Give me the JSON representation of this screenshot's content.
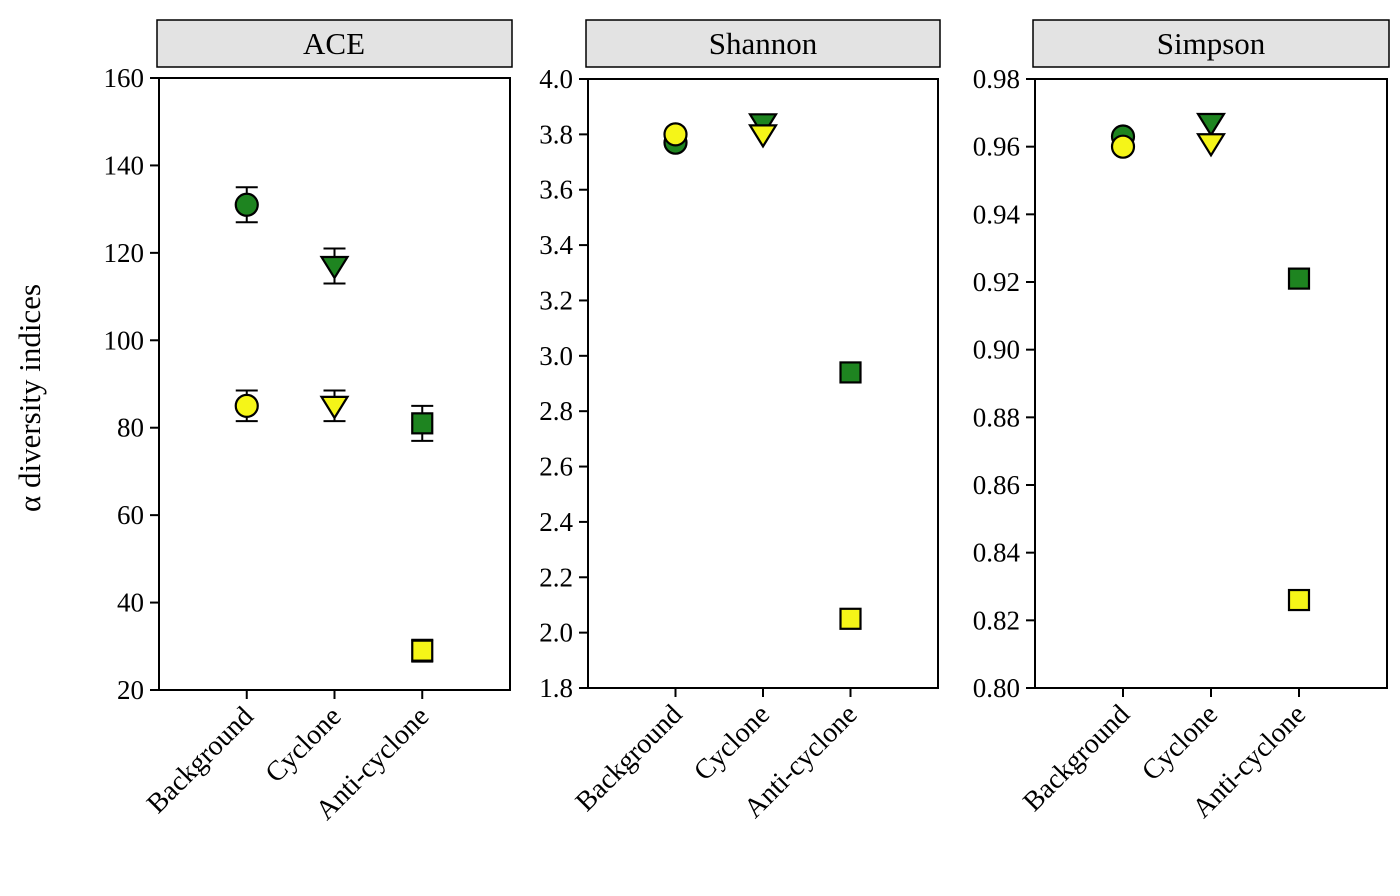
{
  "figure": {
    "ylabel": "α diversity indices",
    "colors": {
      "green": "#1e8420",
      "yellow": "#f5f518",
      "marker_outline": "#000000",
      "axis": "#000000",
      "header_bg": "#e3e3e3"
    }
  },
  "chart_data": [
    {
      "type": "scatter",
      "title": "ACE",
      "xlabel": "",
      "ylabel": "α diversity indices",
      "categories": [
        "Background",
        "Cyclone",
        "Anti-cyclone"
      ],
      "marker_by_category": [
        "circle",
        "triangle-down",
        "square"
      ],
      "ylim": [
        20,
        160
      ],
      "yticks": [
        160,
        140,
        120,
        100,
        80,
        60,
        40,
        20
      ],
      "ytick_labels": [
        "160",
        "140",
        "120",
        "100",
        "80",
        "60",
        "40",
        "20"
      ],
      "grid": false,
      "legend": "none",
      "series": [
        {
          "name": "green",
          "color_key": "green",
          "values": [
            131,
            117,
            81
          ],
          "errors": [
            4,
            4,
            4
          ]
        },
        {
          "name": "yellow",
          "color_key": "yellow",
          "values": [
            85,
            85,
            29
          ],
          "errors": [
            3.5,
            3.5,
            2.5
          ]
        }
      ]
    },
    {
      "type": "scatter",
      "title": "Shannon",
      "xlabel": "",
      "ylabel": "α diversity indices",
      "categories": [
        "Background",
        "Cyclone",
        "Anti-cyclone"
      ],
      "marker_by_category": [
        "circle",
        "triangle-down",
        "square"
      ],
      "ylim": [
        1.8,
        4.0
      ],
      "yticks": [
        4.0,
        3.8,
        3.6,
        3.4,
        3.2,
        3.0,
        2.8,
        2.6,
        2.4,
        2.2,
        2.0,
        1.8
      ],
      "ytick_labels": [
        "4.0",
        "3.8",
        "3.6",
        "3.4",
        "3.2",
        "3.0",
        "2.8",
        "2.6",
        "2.4",
        "2.2",
        "2.0",
        "1.8"
      ],
      "grid": false,
      "legend": "none",
      "series": [
        {
          "name": "green",
          "color_key": "green",
          "values": [
            3.77,
            3.84,
            2.94
          ],
          "errors": [
            0,
            0,
            0
          ]
        },
        {
          "name": "yellow",
          "color_key": "yellow",
          "values": [
            3.8,
            3.8,
            2.05
          ],
          "errors": [
            0,
            0,
            0
          ]
        }
      ]
    },
    {
      "type": "scatter",
      "title": "Simpson",
      "xlabel": "",
      "ylabel": "α diversity indices",
      "categories": [
        "Background",
        "Cyclone",
        "Anti-cyclone"
      ],
      "marker_by_category": [
        "circle",
        "triangle-down",
        "square"
      ],
      "ylim": [
        0.8,
        0.98
      ],
      "yticks": [
        0.98,
        0.96,
        0.94,
        0.92,
        0.9,
        0.88,
        0.86,
        0.84,
        0.82,
        0.8
      ],
      "ytick_labels": [
        "0.98",
        "0.96",
        "0.94",
        "0.92",
        "0.90",
        "0.88",
        "0.86",
        "0.84",
        "0.82",
        "0.80"
      ],
      "grid": false,
      "legend": "none",
      "series": [
        {
          "name": "green",
          "color_key": "green",
          "values": [
            0.963,
            0.967,
            0.921
          ],
          "errors": [
            0,
            0,
            0
          ]
        },
        {
          "name": "yellow",
          "color_key": "yellow",
          "values": [
            0.96,
            0.961,
            0.826
          ],
          "errors": [
            0,
            0,
            0
          ]
        }
      ]
    }
  ]
}
